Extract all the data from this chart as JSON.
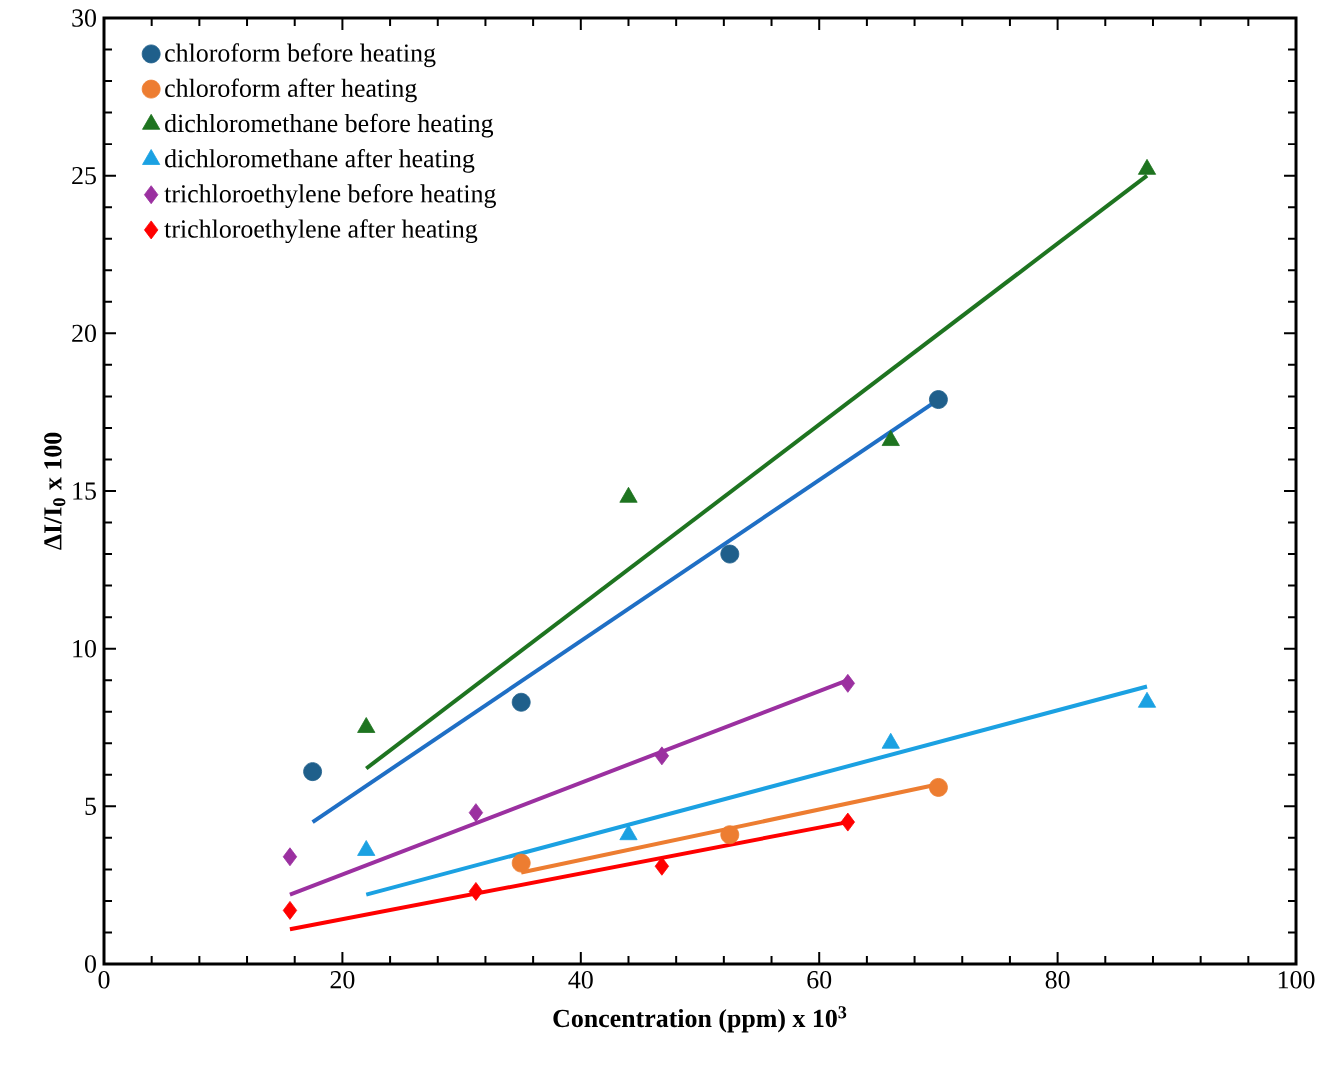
{
  "chart_data": {
    "type": "scatter",
    "xlabel": "Concentration (ppm) x 10$^{3}$",
    "ylabel": "ΔI/I$_{0}$ x 100",
    "xlim": [
      0,
      100
    ],
    "xticks": [
      0,
      20,
      40,
      60,
      80,
      100
    ],
    "ylim": [
      0,
      30
    ],
    "yticks": [
      0,
      5,
      10,
      15,
      20,
      25,
      30
    ],
    "grid": false,
    "legend": "top left",
    "series": [
      {
        "name": "chloroform before heating",
        "marker": "circle",
        "color": "#1f5f8b",
        "x": [
          17.5,
          35,
          52.5,
          70
        ],
        "values": [
          6.1,
          8.3,
          13.0,
          17.9
        ]
      },
      {
        "name": "chloroform after heating",
        "marker": "circle",
        "color": "#ed7d31",
        "x": [
          35,
          52.5,
          70
        ],
        "values": [
          3.2,
          4.1,
          5.6
        ]
      },
      {
        "name": "dichloromethane before heating",
        "marker": "triangle",
        "color": "#1e7420",
        "x": [
          22,
          44,
          66,
          87.5
        ],
        "values": [
          7.5,
          14.8,
          16.6,
          25.2
        ]
      },
      {
        "name": "dichloromethane after heating",
        "marker": "triangle",
        "color": "#1ba1e2",
        "x": [
          22,
          44,
          66,
          87.5
        ],
        "values": [
          3.6,
          4.1,
          7.0,
          8.3
        ]
      },
      {
        "name": "trichloroethylene before heating",
        "marker": "diamond",
        "color": "#9b30a0",
        "x": [
          15.6,
          31.2,
          46.8,
          62.4
        ],
        "values": [
          3.4,
          4.8,
          6.6,
          8.9
        ]
      },
      {
        "name": "trichloroethylene after heating",
        "marker": "diamond",
        "color": "#ff0000",
        "x": [
          15.6,
          31.2,
          46.8,
          62.4
        ],
        "values": [
          1.7,
          2.3,
          3.1,
          4.5
        ]
      },
      {
        "type": "line",
        "marker": "none",
        "color": "#1f6fc5",
        "x": [
          17.5,
          70
        ],
        "values": [
          4.5,
          17.9
        ]
      },
      {
        "type": "line",
        "marker": "none",
        "color": "#ed7d31",
        "x": [
          35,
          70
        ],
        "values": [
          2.9,
          5.7
        ]
      },
      {
        "type": "line",
        "marker": "none",
        "color": "#1e7420",
        "x": [
          22,
          87.5
        ],
        "values": [
          6.2,
          25.0
        ]
      },
      {
        "type": "line",
        "marker": "none",
        "color": "#1ba1e2",
        "x": [
          22,
          87.5
        ],
        "values": [
          2.2,
          8.8
        ]
      },
      {
        "type": "line",
        "marker": "none",
        "color": "#9b30a0",
        "x": [
          15.6,
          62.4
        ],
        "values": [
          2.2,
          9.0
        ]
      },
      {
        "type": "line",
        "marker": "none",
        "color": "#ff0000",
        "x": [
          15.6,
          62.4
        ],
        "values": [
          1.1,
          4.5
        ]
      }
    ]
  }
}
